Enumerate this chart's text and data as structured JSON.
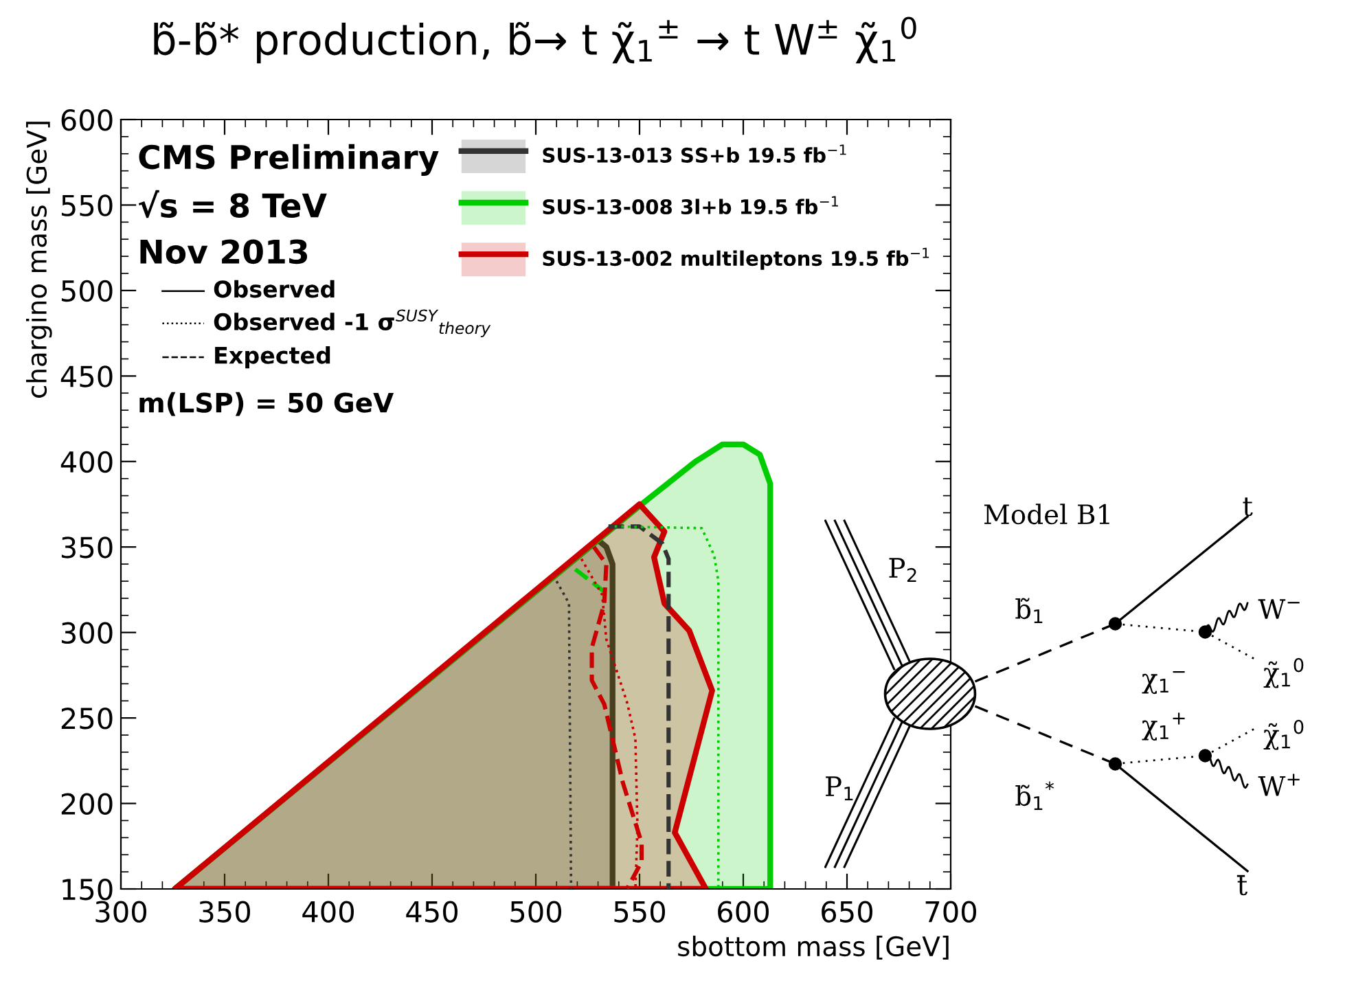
{
  "chart_data": {
    "type": "area",
    "title": "b̃-b̃* production, b̃→ t χ̃$_{1}$$^{±}$ → t W$^{±}$ χ̃$_{1}$$^{0}$",
    "xlabel": "sbottom mass [GeV]",
    "ylabel": "chargino mass [GeV]",
    "xlim": [
      300,
      700
    ],
    "ylim": [
      150,
      600
    ],
    "xticks": [
      300,
      350,
      400,
      450,
      500,
      550,
      600,
      650,
      700
    ],
    "yticks": [
      150,
      200,
      250,
      300,
      350,
      400,
      450,
      500,
      550,
      600
    ],
    "grid": false,
    "legend": "top right",
    "marker": "none",
    "series": [
      {
        "name": "SUS-13-013 SS+b 19.5 fb$^{−1}$",
        "color": "#333333",
        "line_style": "solid",
        "x": [
          326,
          530,
          534,
          537,
          537
        ],
        "values": [
          150,
          354,
          350,
          340,
          150
        ]
      },
      {
        "name": "SUS-13-008 3l+b 19.5 fb$^{−1}$",
        "color": "#00cc00",
        "line_style": "solid",
        "x": [
          326,
          551,
          577,
          590,
          600,
          608,
          613,
          613
        ],
        "values": [
          150,
          375,
          400,
          410,
          410,
          404,
          387,
          150
        ]
      },
      {
        "name": "SUS-13-002 multileptons 19.5 fb$^{−1}$",
        "color": "#cc0000",
        "line_style": "solid",
        "x": [
          326,
          550,
          562,
          557,
          562,
          574,
          585,
          567,
          582
        ],
        "values": [
          150,
          375,
          359,
          344,
          317,
          301,
          266,
          183,
          150
        ]
      },
      {
        "type": "line",
        "color": "#333333",
        "line_style": "dashed",
        "x": [
          535,
          550,
          561,
          564,
          564
        ],
        "values": [
          362,
          362,
          352,
          343,
          150
        ]
      },
      {
        "type": "line",
        "color": "#333333",
        "line_style": "dotted",
        "x": [
          510,
          516,
          517
        ],
        "values": [
          330,
          317,
          150
        ]
      },
      {
        "type": "line",
        "color": "#00cc00",
        "line_style": "dashed",
        "x": [
          519,
          535
        ],
        "values": [
          337,
          322
        ]
      },
      {
        "type": "line",
        "color": "#00cc00",
        "line_style": "dotted",
        "x": [
          538,
          580,
          586,
          588,
          588
        ],
        "values": [
          362,
          361,
          345,
          330,
          150
        ]
      },
      {
        "type": "line",
        "color": "#cc0000",
        "line_style": "dashed",
        "x": [
          528,
          534,
          533,
          527,
          527,
          533,
          542,
          551,
          551,
          544
        ],
        "values": [
          350,
          340,
          317,
          291,
          272,
          258,
          212,
          177,
          166,
          150
        ]
      },
      {
        "type": "line",
        "color": "#cc0000",
        "line_style": "dotted",
        "x": [
          522,
          532,
          534,
          544,
          548,
          549,
          548
        ],
        "values": [
          343,
          322,
          296,
          259,
          238,
          186,
          150
        ]
      }
    ],
    "annotations": [
      "CMS Preliminary",
      "√s = 8 TeV",
      "Nov 2013",
      "Observed",
      "Observed -1 σ$^{SUSY}$$_{theory}$",
      "Expected",
      "m(LSP) = 50 GeV",
      "Model B1",
      "P$_{2}$",
      "P$_{1}$",
      "b̃$_{1}$",
      "b̃$_{1}$$^{*}$",
      "χ$_{1}$$^{−}$",
      "χ$_{1}$$^{+}$",
      "t",
      "W$^{−}$",
      "χ̃$_{1}$$^{0}$",
      "χ̃$_{1}$$^{0}$",
      "W$^{+}$",
      "t̄"
    ]
  }
}
